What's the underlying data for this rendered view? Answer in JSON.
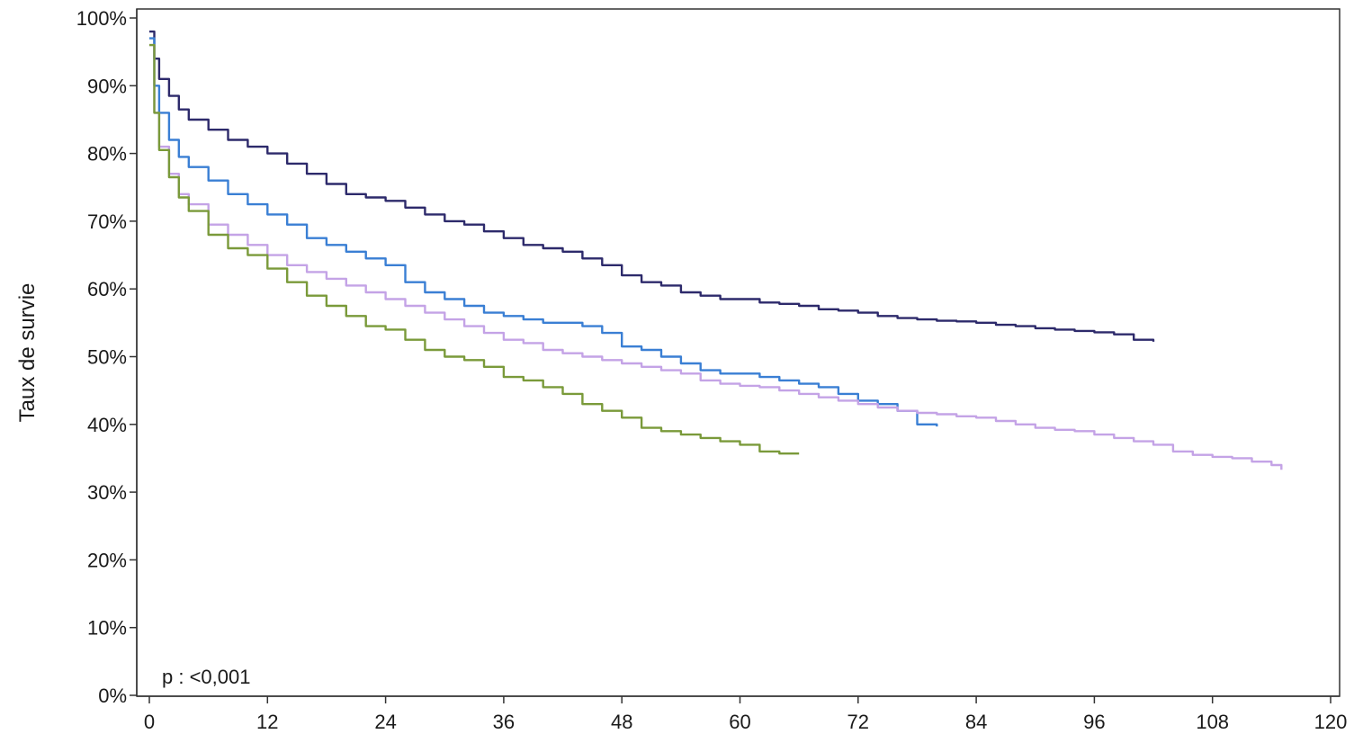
{
  "chart_data": {
    "type": "line",
    "title": "",
    "xlabel": "",
    "ylabel": "Taux de survie",
    "xlim": [
      0,
      120
    ],
    "ylim": [
      0,
      100
    ],
    "x_ticks": [
      0,
      12,
      24,
      36,
      48,
      60,
      72,
      84,
      96,
      108,
      120
    ],
    "x_tick_labels": [
      "0",
      "12",
      "24",
      "36",
      "48",
      "60",
      "72",
      "84",
      "96",
      "108",
      "120"
    ],
    "y_ticks": [
      0,
      10,
      20,
      30,
      40,
      50,
      60,
      70,
      80,
      90,
      100
    ],
    "y_tick_labels": [
      "0%",
      "10%",
      "20%",
      "30%",
      "40%",
      "50%",
      "60%",
      "70%",
      "80%",
      "90%",
      "100%"
    ],
    "grid": false,
    "annotation": "p : <0,001",
    "series": [
      {
        "color": "#2d2a6b",
        "x": [
          0,
          0.5,
          1,
          2,
          3,
          4,
          6,
          8,
          10,
          12,
          14,
          16,
          18,
          20,
          22,
          24,
          26,
          28,
          30,
          32,
          34,
          36,
          38,
          40,
          42,
          44,
          46,
          48,
          50,
          52,
          54,
          56,
          58,
          60,
          62,
          64,
          66,
          68,
          70,
          72,
          74,
          76,
          78,
          80,
          82,
          84,
          86,
          88,
          90,
          92,
          94,
          96,
          98,
          100,
          102
        ],
        "y": [
          98,
          94,
          91,
          88.5,
          86.5,
          85,
          83.5,
          82,
          81,
          80,
          78.5,
          77,
          75.5,
          74,
          73.5,
          73,
          72,
          71,
          70,
          69.5,
          68.5,
          67.5,
          66.5,
          66,
          65.5,
          64.5,
          63.5,
          62,
          61,
          60.5,
          59.5,
          59,
          58.5,
          58.5,
          58,
          57.8,
          57.5,
          57,
          56.8,
          56.5,
          56,
          55.7,
          55.5,
          55.3,
          55.2,
          55,
          54.7,
          54.5,
          54.2,
          54,
          53.8,
          53.6,
          53.3,
          52.5,
          52.2
        ]
      },
      {
        "color": "#3a7fd4",
        "x": [
          0,
          0.5,
          1,
          2,
          3,
          4,
          6,
          8,
          10,
          12,
          14,
          16,
          18,
          20,
          22,
          24,
          26,
          28,
          30,
          32,
          34,
          36,
          38,
          40,
          42,
          44,
          46,
          48,
          50,
          52,
          54,
          56,
          58,
          60,
          62,
          64,
          66,
          68,
          70,
          72,
          74,
          76,
          78,
          80
        ],
        "y": [
          97,
          90,
          86,
          82,
          79.5,
          78,
          76,
          74,
          72.5,
          71,
          69.5,
          67.5,
          66.5,
          65.5,
          64.5,
          63.5,
          61,
          59.5,
          58.5,
          57.5,
          56.5,
          56,
          55.5,
          55,
          55,
          54.5,
          53.5,
          51.5,
          51,
          50,
          49,
          48,
          47.5,
          47.5,
          47,
          46.5,
          46,
          45.5,
          44.5,
          43.5,
          43,
          42,
          40,
          39.7
        ]
      },
      {
        "color": "#c4a3e6",
        "x": [
          0,
          0.5,
          1,
          2,
          3,
          4,
          6,
          8,
          10,
          12,
          14,
          16,
          18,
          20,
          22,
          24,
          26,
          28,
          30,
          32,
          34,
          36,
          38,
          40,
          42,
          44,
          46,
          48,
          50,
          52,
          54,
          56,
          58,
          60,
          62,
          64,
          66,
          68,
          70,
          72,
          74,
          76,
          78,
          80,
          82,
          84,
          86,
          88,
          90,
          92,
          94,
          96,
          98,
          100,
          102,
          104,
          106,
          108,
          110,
          112,
          114,
          115
        ],
        "y": [
          96,
          86,
          81,
          77,
          74,
          72.5,
          69.5,
          68,
          66.5,
          65,
          63.5,
          62.5,
          61.5,
          60.5,
          59.5,
          58.5,
          57.5,
          56.5,
          55.5,
          54.5,
          53.5,
          52.5,
          52,
          51,
          50.5,
          50,
          49.5,
          49,
          48.5,
          48,
          47.5,
          46.5,
          46,
          45.7,
          45.5,
          45,
          44.5,
          44,
          43.5,
          43,
          42.5,
          42,
          41.7,
          41.5,
          41.2,
          41,
          40.5,
          40,
          39.5,
          39.2,
          39,
          38.5,
          38,
          37.5,
          37,
          36,
          35.5,
          35.2,
          35,
          34.5,
          34,
          33.3
        ]
      },
      {
        "color": "#7a9a3a",
        "x": [
          0,
          0.5,
          1,
          2,
          3,
          4,
          6,
          8,
          10,
          12,
          14,
          16,
          18,
          20,
          22,
          24,
          26,
          28,
          30,
          32,
          34,
          36,
          38,
          40,
          42,
          44,
          46,
          48,
          50,
          52,
          54,
          56,
          58,
          60,
          62,
          64,
          66
        ],
        "y": [
          96,
          86,
          80.5,
          76.5,
          73.5,
          71.5,
          68,
          66,
          65,
          63,
          61,
          59,
          57.5,
          56,
          54.5,
          54,
          52.5,
          51,
          50,
          49.5,
          48.5,
          47,
          46.5,
          45.5,
          44.5,
          43,
          42,
          41,
          39.5,
          39,
          38.5,
          38,
          37.5,
          37,
          36,
          35.7,
          35.7
        ]
      }
    ]
  }
}
